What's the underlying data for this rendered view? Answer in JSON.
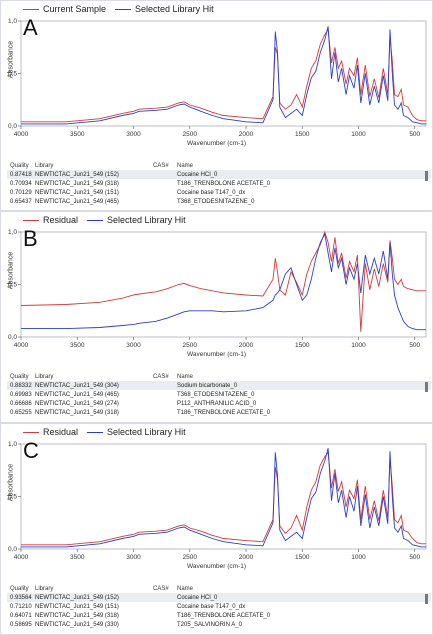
{
  "panels": [
    {
      "label": "A",
      "legend": [
        {
          "text": "Current Sample",
          "color": "#d43a3a"
        },
        {
          "text": "Selected Library Hit",
          "color": "#2c3fc7"
        }
      ],
      "table": {
        "headers": [
          "Quality",
          "Library",
          "CAS#",
          "Name"
        ],
        "rows": [
          [
            "0.87418",
            "NEWTICTAC_Jun21_549 (152)",
            "",
            "Cocaine HCl_0"
          ],
          [
            "0.70934",
            "NEWTICTAC_Jun21_549 (318)",
            "",
            "T186_TRENBOLONE ACETATE_0"
          ],
          [
            "0.70129",
            "NEWTICTAC_Jun21_549 (151)",
            "",
            "Cocaine base T147_0_dx"
          ],
          [
            "0.65437",
            "NEWTICTAC_Jun21_549 (465)",
            "",
            "T368_ETODESNITAZENE_0"
          ]
        ]
      }
    },
    {
      "label": "B",
      "legend": [
        {
          "text": "Residual",
          "color": "#d43a3a"
        },
        {
          "text": "Selected Library Hit",
          "color": "#2c3fc7"
        }
      ],
      "table": {
        "headers": [
          "Quality",
          "Library",
          "CAS#",
          "Name"
        ],
        "rows": [
          [
            "0.88332",
            "NEWTICTAC_Jun21_549 (304)",
            "",
            "Sodium bicarbonate_0"
          ],
          [
            "0.69983",
            "NEWTICTAC_Jun21_549 (465)",
            "",
            "T368_ETODESNITAZENE_0"
          ],
          [
            "0.66686",
            "NEWTICTAC_Jun21_549 (274)",
            "",
            "P112_ANTHRANILIC ACID_0"
          ],
          [
            "0.65255",
            "NEWTICTAC_Jun21_549 (318)",
            "",
            "T186_TRENBOLONE ACETATE_0"
          ]
        ]
      }
    },
    {
      "label": "C",
      "legend": [
        {
          "text": "Residual",
          "color": "#d43a3a"
        },
        {
          "text": "Selected Library Hit",
          "color": "#2c3fc7"
        }
      ],
      "table": {
        "headers": [
          "Quality",
          "Library",
          "CAS#",
          "Name"
        ],
        "rows": [
          [
            "0.93564",
            "NEWTICTAC_Jun21_549 (152)",
            "",
            "Cocaine HCl_0"
          ],
          [
            "0.71210",
            "NEWTICTAC_Jun21_549 (151)",
            "",
            "Cocaine base T147_0_dx"
          ],
          [
            "0.64071",
            "NEWTICTAC_Jun21_549 (318)",
            "",
            "T186_TRENBOLONE ACETATE_0"
          ],
          [
            "0.58695",
            "NEWTICTAC_Jun21_549 (330)",
            "",
            "T205_SALVINORIN A_0"
          ]
        ]
      }
    }
  ],
  "chart_data": [
    {
      "type": "line",
      "panel": "A",
      "xlabel": "Wavenumber (cm-1)",
      "ylabel": "Absorbance",
      "xlim": [
        4000,
        400
      ],
      "ylim": [
        0,
        1
      ],
      "x_ticks": [
        4000,
        3500,
        3000,
        2500,
        2000,
        1500,
        1000,
        500
      ],
      "y_ticks": [
        "0,0",
        "0,5",
        "1,0"
      ],
      "series": [
        {
          "name": "Current Sample",
          "color": "#d43a3a",
          "x": [
            4000,
            3600,
            3300,
            3100,
            3000,
            2950,
            2800,
            2700,
            2600,
            2550,
            2500,
            2400,
            2300,
            2200,
            2000,
            1850,
            1760,
            1740,
            1720,
            1700,
            1650,
            1600,
            1550,
            1500,
            1460,
            1420,
            1380,
            1340,
            1300,
            1270,
            1240,
            1210,
            1180,
            1150,
            1110,
            1080,
            1040,
            1010,
            980,
            940,
            900,
            860,
            820,
            780,
            740,
            720,
            700,
            680,
            650,
            620,
            600,
            560,
            520,
            480,
            440,
            400
          ],
          "y": [
            0.04,
            0.04,
            0.07,
            0.12,
            0.14,
            0.16,
            0.17,
            0.18,
            0.22,
            0.23,
            0.2,
            0.17,
            0.13,
            0.1,
            0.08,
            0.07,
            0.28,
            0.75,
            0.68,
            0.22,
            0.16,
            0.2,
            0.3,
            0.18,
            0.38,
            0.55,
            0.62,
            0.78,
            0.87,
            0.92,
            0.6,
            0.75,
            0.55,
            0.62,
            0.4,
            0.55,
            0.48,
            0.65,
            0.3,
            0.58,
            0.28,
            0.45,
            0.27,
            0.55,
            0.3,
            0.85,
            0.62,
            0.3,
            0.28,
            0.35,
            0.2,
            0.18,
            0.1,
            0.06,
            0.05,
            0.05
          ]
        },
        {
          "name": "Selected Library Hit",
          "color": "#2c3fc7",
          "x": [
            4000,
            3600,
            3300,
            3100,
            3000,
            2950,
            2800,
            2700,
            2600,
            2550,
            2500,
            2400,
            2300,
            2200,
            2000,
            1850,
            1760,
            1740,
            1720,
            1700,
            1650,
            1600,
            1550,
            1500,
            1460,
            1420,
            1380,
            1340,
            1300,
            1270,
            1240,
            1210,
            1180,
            1150,
            1110,
            1080,
            1040,
            1010,
            980,
            940,
            900,
            860,
            820,
            780,
            740,
            720,
            700,
            680,
            650,
            620,
            600,
            560,
            520,
            480,
            440,
            400
          ],
          "y": [
            0.02,
            0.02,
            0.05,
            0.1,
            0.12,
            0.14,
            0.15,
            0.16,
            0.2,
            0.21,
            0.18,
            0.14,
            0.1,
            0.07,
            0.04,
            0.03,
            0.25,
            0.9,
            0.7,
            0.18,
            0.08,
            0.12,
            0.16,
            0.1,
            0.3,
            0.46,
            0.52,
            0.7,
            0.82,
            0.95,
            0.45,
            0.7,
            0.42,
            0.55,
            0.3,
            0.48,
            0.36,
            0.58,
            0.22,
            0.5,
            0.2,
            0.38,
            0.22,
            0.48,
            0.24,
            0.92,
            0.5,
            0.2,
            0.16,
            0.22,
            0.1,
            0.08,
            0.04,
            0.03,
            0.02,
            0.02
          ]
        }
      ]
    },
    {
      "type": "line",
      "panel": "B",
      "xlabel": "Wavenumber (cm-1)",
      "ylabel": "Absorbance",
      "xlim": [
        4000,
        400
      ],
      "ylim": [
        0,
        1
      ],
      "x_ticks": [
        4000,
        3500,
        3000,
        2500,
        2000,
        1500,
        1000,
        500
      ],
      "y_ticks": [
        "0,0",
        "0,5",
        "1,0"
      ],
      "series": [
        {
          "name": "Residual",
          "color": "#d43a3a",
          "x": [
            4000,
            3600,
            3300,
            3100,
            3000,
            2950,
            2800,
            2700,
            2600,
            2550,
            2500,
            2400,
            2300,
            2200,
            2000,
            1850,
            1760,
            1740,
            1720,
            1700,
            1650,
            1600,
            1550,
            1500,
            1460,
            1420,
            1380,
            1340,
            1300,
            1270,
            1240,
            1210,
            1180,
            1150,
            1110,
            1080,
            1040,
            1010,
            980,
            940,
            900,
            860,
            820,
            780,
            740,
            720,
            700,
            680,
            650,
            620,
            600,
            560,
            520,
            480,
            440,
            400
          ],
          "y": [
            0.3,
            0.31,
            0.33,
            0.37,
            0.4,
            0.41,
            0.43,
            0.46,
            0.5,
            0.51,
            0.49,
            0.46,
            0.44,
            0.42,
            0.4,
            0.39,
            0.55,
            0.75,
            0.62,
            0.45,
            0.4,
            0.62,
            0.52,
            0.4,
            0.6,
            0.72,
            0.8,
            0.88,
            1.0,
            0.9,
            0.72,
            0.95,
            0.7,
            0.8,
            0.56,
            0.72,
            0.62,
            0.78,
            0.05,
            0.7,
            0.45,
            0.65,
            0.48,
            0.7,
            0.52,
            0.92,
            0.75,
            0.55,
            0.5,
            0.55,
            0.48,
            0.46,
            0.45,
            0.44,
            0.44,
            0.44
          ]
        },
        {
          "name": "Selected Library Hit",
          "color": "#2c3fc7",
          "x": [
            4000,
            3600,
            3300,
            3100,
            3000,
            2950,
            2800,
            2700,
            2600,
            2550,
            2500,
            2400,
            2300,
            2200,
            2000,
            1850,
            1760,
            1740,
            1720,
            1700,
            1650,
            1600,
            1550,
            1500,
            1460,
            1420,
            1380,
            1340,
            1300,
            1270,
            1240,
            1210,
            1180,
            1150,
            1110,
            1080,
            1040,
            1010,
            980,
            940,
            900,
            860,
            820,
            780,
            740,
            720,
            700,
            680,
            650,
            620,
            600,
            560,
            520,
            480,
            440,
            400
          ],
          "y": [
            0.08,
            0.08,
            0.09,
            0.11,
            0.12,
            0.13,
            0.15,
            0.18,
            0.22,
            0.24,
            0.25,
            0.25,
            0.25,
            0.24,
            0.25,
            0.28,
            0.35,
            0.4,
            0.42,
            0.45,
            0.6,
            0.66,
            0.5,
            0.35,
            0.4,
            0.55,
            0.75,
            0.9,
            0.98,
            0.8,
            0.62,
            0.85,
            0.66,
            0.75,
            0.5,
            0.66,
            0.55,
            0.7,
            0.42,
            0.78,
            0.6,
            0.75,
            0.6,
            0.82,
            0.55,
            0.9,
            0.6,
            0.4,
            0.28,
            0.2,
            0.15,
            0.1,
            0.08,
            0.07,
            0.07,
            0.07
          ]
        }
      ]
    },
    {
      "type": "line",
      "panel": "C",
      "xlabel": "Wavenumber (cm-1)",
      "ylabel": "Absorbance",
      "xlim": [
        4000,
        400
      ],
      "ylim": [
        0,
        1
      ],
      "x_ticks": [
        4000,
        3500,
        3000,
        2500,
        2000,
        1500,
        1000,
        500
      ],
      "y_ticks": [
        "0,0",
        "0,5",
        "1,0"
      ],
      "series": [
        {
          "name": "Residual",
          "color": "#d43a3a",
          "x": [
            4000,
            3600,
            3300,
            3100,
            3000,
            2950,
            2800,
            2700,
            2600,
            2550,
            2500,
            2400,
            2300,
            2200,
            2000,
            1850,
            1760,
            1740,
            1720,
            1700,
            1650,
            1600,
            1550,
            1500,
            1460,
            1420,
            1380,
            1340,
            1300,
            1270,
            1240,
            1210,
            1180,
            1150,
            1110,
            1080,
            1040,
            1010,
            980,
            940,
            900,
            860,
            820,
            780,
            740,
            720,
            700,
            680,
            650,
            620,
            600,
            560,
            520,
            480,
            440,
            400
          ],
          "y": [
            0.04,
            0.04,
            0.07,
            0.12,
            0.14,
            0.16,
            0.17,
            0.18,
            0.22,
            0.23,
            0.2,
            0.17,
            0.13,
            0.1,
            0.08,
            0.07,
            0.28,
            0.78,
            0.66,
            0.22,
            0.15,
            0.2,
            0.32,
            0.18,
            0.4,
            0.56,
            0.64,
            0.8,
            0.88,
            0.92,
            0.58,
            0.76,
            0.55,
            0.64,
            0.4,
            0.56,
            0.48,
            0.66,
            0.28,
            0.6,
            0.28,
            0.46,
            0.27,
            0.56,
            0.3,
            0.86,
            0.6,
            0.28,
            0.25,
            0.32,
            0.18,
            0.16,
            0.1,
            0.06,
            0.05,
            0.05
          ]
        },
        {
          "name": "Selected Library Hit",
          "color": "#2c3fc7",
          "x": [
            4000,
            3600,
            3300,
            3100,
            3000,
            2950,
            2800,
            2700,
            2600,
            2550,
            2500,
            2400,
            2300,
            2200,
            2000,
            1850,
            1760,
            1740,
            1720,
            1700,
            1650,
            1600,
            1550,
            1500,
            1460,
            1420,
            1380,
            1340,
            1300,
            1270,
            1240,
            1210,
            1180,
            1150,
            1110,
            1080,
            1040,
            1010,
            980,
            940,
            900,
            860,
            820,
            780,
            740,
            720,
            700,
            680,
            650,
            620,
            600,
            560,
            520,
            480,
            440,
            400
          ],
          "y": [
            0.02,
            0.02,
            0.05,
            0.1,
            0.12,
            0.14,
            0.15,
            0.16,
            0.2,
            0.21,
            0.18,
            0.14,
            0.1,
            0.07,
            0.04,
            0.03,
            0.25,
            0.92,
            0.7,
            0.18,
            0.08,
            0.12,
            0.16,
            0.1,
            0.3,
            0.48,
            0.54,
            0.72,
            0.84,
            0.96,
            0.46,
            0.72,
            0.44,
            0.56,
            0.3,
            0.5,
            0.36,
            0.6,
            0.22,
            0.52,
            0.2,
            0.4,
            0.22,
            0.5,
            0.24,
            0.93,
            0.5,
            0.2,
            0.16,
            0.22,
            0.1,
            0.08,
            0.04,
            0.03,
            0.02,
            0.02
          ]
        }
      ]
    }
  ]
}
